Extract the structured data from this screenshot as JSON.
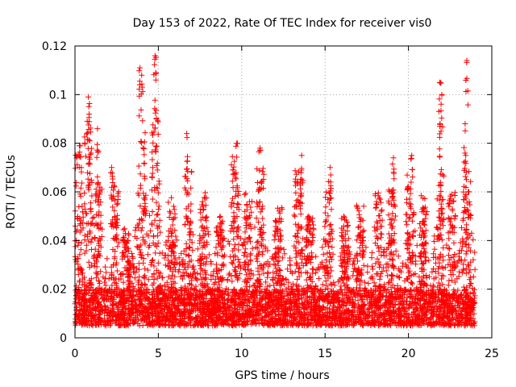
{
  "chart_data": {
    "type": "scatter",
    "title": "Day 153 of 2022, Rate Of TEC Index for receiver vis0",
    "xlabel": "GPS time / hours",
    "ylabel": "ROTI / TECUs",
    "xlim": [
      0,
      25
    ],
    "ylim": [
      0,
      0.12
    ],
    "xticks": [
      "0",
      "5",
      "10",
      "15",
      "20",
      "25"
    ],
    "yticks": [
      "0",
      "0.02",
      "0.04",
      "0.06",
      "0.08",
      "0.1",
      "0.12"
    ],
    "grid": true,
    "marker": "+",
    "color": "#ff0000",
    "x_data_range": [
      0,
      24
    ],
    "baseline_roti": [
      0.005,
      0.02
    ],
    "peaks": [
      {
        "x": 0.8,
        "y": 0.099
      },
      {
        "x": 0.85,
        "y": 0.092
      },
      {
        "x": 1.35,
        "y": 0.086
      },
      {
        "x": 2.2,
        "y": 0.07
      },
      {
        "x": 3.9,
        "y": 0.111
      },
      {
        "x": 4.0,
        "y": 0.108
      },
      {
        "x": 4.8,
        "y": 0.116
      },
      {
        "x": 4.85,
        "y": 0.106
      },
      {
        "x": 6.7,
        "y": 0.084
      },
      {
        "x": 9.7,
        "y": 0.08
      },
      {
        "x": 11.1,
        "y": 0.078
      },
      {
        "x": 13.6,
        "y": 0.075
      },
      {
        "x": 15.3,
        "y": 0.07
      },
      {
        "x": 19.1,
        "y": 0.074
      },
      {
        "x": 20.2,
        "y": 0.075
      },
      {
        "x": 21.9,
        "y": 0.105
      },
      {
        "x": 22.0,
        "y": 0.1
      },
      {
        "x": 21.9,
        "y": 0.088
      },
      {
        "x": 23.5,
        "y": 0.114
      },
      {
        "x": 23.4,
        "y": 0.088
      }
    ],
    "activity_bursts": [
      {
        "x": 0.2,
        "max": 0.08
      },
      {
        "x": 0.8,
        "max": 0.09
      },
      {
        "x": 1.4,
        "max": 0.065
      },
      {
        "x": 2.4,
        "max": 0.065
      },
      {
        "x": 3.1,
        "max": 0.045
      },
      {
        "x": 4.0,
        "max": 0.085
      },
      {
        "x": 4.8,
        "max": 0.09
      },
      {
        "x": 5.8,
        "max": 0.06
      },
      {
        "x": 6.8,
        "max": 0.07
      },
      {
        "x": 7.7,
        "max": 0.06
      },
      {
        "x": 8.7,
        "max": 0.05
      },
      {
        "x": 9.6,
        "max": 0.075
      },
      {
        "x": 10.4,
        "max": 0.06
      },
      {
        "x": 11.1,
        "max": 0.07
      },
      {
        "x": 12.2,
        "max": 0.055
      },
      {
        "x": 13.4,
        "max": 0.07
      },
      {
        "x": 14.1,
        "max": 0.05
      },
      {
        "x": 15.2,
        "max": 0.065
      },
      {
        "x": 16.2,
        "max": 0.05
      },
      {
        "x": 17.1,
        "max": 0.055
      },
      {
        "x": 18.2,
        "max": 0.06
      },
      {
        "x": 19.0,
        "max": 0.062
      },
      {
        "x": 20.1,
        "max": 0.07
      },
      {
        "x": 20.9,
        "max": 0.06
      },
      {
        "x": 21.9,
        "max": 0.07
      },
      {
        "x": 22.6,
        "max": 0.06
      },
      {
        "x": 23.5,
        "max": 0.075
      }
    ]
  }
}
